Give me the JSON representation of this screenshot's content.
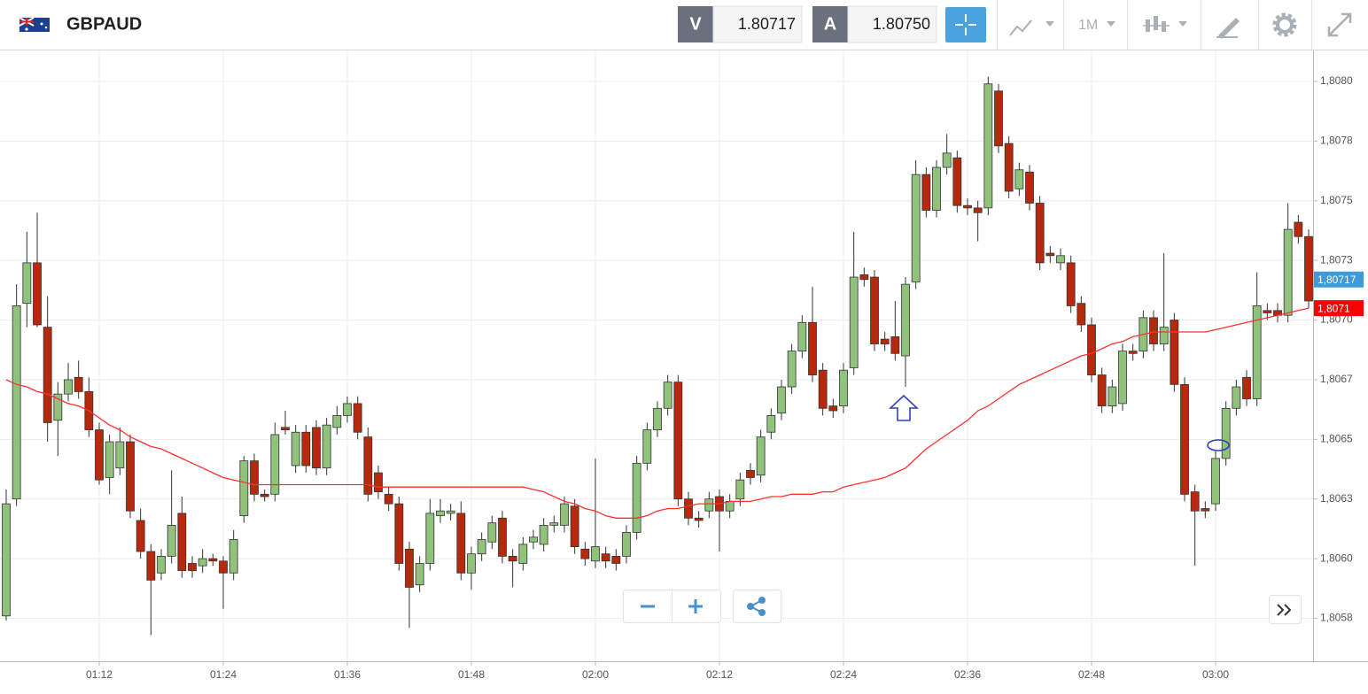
{
  "header": {
    "symbol": "GBPAUD",
    "bid_label": "V",
    "bid": "1.80717",
    "ask_label": "A",
    "ask": "1.80750",
    "timeframe": "1M"
  },
  "chart_data": {
    "type": "candlestick",
    "categories": [
      null,
      null,
      null,
      null,
      null,
      null,
      null,
      null,
      null,
      "01:12",
      null,
      null,
      null,
      null,
      null,
      null,
      null,
      null,
      null,
      null,
      null,
      "01:24",
      null,
      null,
      null,
      null,
      null,
      null,
      null,
      null,
      null,
      null,
      null,
      "01:36",
      null,
      null,
      null,
      null,
      null,
      null,
      null,
      null,
      null,
      null,
      null,
      "01:48",
      null,
      null,
      null,
      null,
      null,
      null,
      null,
      null,
      null,
      null,
      null,
      "02:00",
      null,
      null,
      null,
      null,
      null,
      null,
      null,
      null,
      null,
      null,
      null,
      "02:12",
      null,
      null,
      null,
      null,
      null,
      null,
      null,
      null,
      null,
      null,
      null,
      "02:24",
      null,
      null,
      null,
      null,
      null,
      null,
      null,
      null,
      null,
      null,
      null,
      "02:36",
      null,
      null,
      null,
      null,
      null,
      null,
      null,
      null,
      null,
      null,
      null,
      "02:48",
      null,
      null,
      null,
      null,
      null,
      null,
      null,
      null,
      null,
      null,
      null,
      "03:00",
      null,
      null,
      null,
      null,
      null,
      null,
      null,
      null,
      null
    ],
    "open": [
      1.80576,
      1.80625,
      1.80707,
      1.80724,
      1.80697,
      1.80658,
      1.80669,
      1.80676,
      1.8067,
      1.80654,
      1.80634,
      1.80638,
      1.80649,
      1.80616,
      1.80603,
      1.80594,
      1.80601,
      1.80619,
      1.80598,
      1.80597,
      1.806,
      1.80599,
      1.80594,
      1.80618,
      1.80641,
      1.80627,
      1.80627,
      1.80655,
      1.80639,
      1.80653,
      1.80655,
      1.80638,
      1.80655,
      1.8066,
      1.80665,
      1.80651,
      1.80636,
      1.80627,
      1.80623,
      1.80604,
      1.80589,
      1.80598,
      1.80618,
      1.80619,
      1.80619,
      1.80594,
      1.80602,
      1.80607,
      1.80617,
      1.80601,
      1.80598,
      1.80607,
      1.80606,
      1.80614,
      1.80614,
      1.80622,
      1.80604,
      1.80599,
      1.80602,
      1.80601,
      1.80601,
      1.80611,
      1.8064,
      1.80654,
      1.80663,
      1.80674,
      1.80625,
      1.80617,
      1.8062,
      1.80626,
      1.8062,
      1.80625,
      1.80637,
      1.80635,
      1.80653,
      1.80661,
      1.80672,
      1.80687,
      1.80699,
      1.80679,
      1.80664,
      1.80664,
      1.8068,
      1.80719,
      1.80718,
      1.80692,
      1.80693,
      1.80685,
      1.80716,
      1.80761,
      1.80746,
      1.80764,
      1.80768,
      1.80748,
      1.80747,
      1.80747,
      1.80796,
      1.80774,
      1.80755,
      1.80762,
      1.80749,
      1.80728,
      1.80724,
      1.80724,
      1.80707,
      1.80698,
      1.80677,
      1.80664,
      1.80665,
      1.80687,
      1.80687,
      1.80701,
      1.8069,
      1.807,
      1.80673,
      1.80628,
      1.80621,
      1.80623,
      1.80642,
      1.80663,
      1.80676,
      1.80667,
      1.80704,
      1.80704,
      1.80702,
      1.80741,
      1.80735
    ],
    "high": [
      1.80629,
      1.80715,
      1.80737,
      1.80745,
      1.8071,
      1.80674,
      1.80682,
      1.80683,
      1.80676,
      1.80657,
      1.80652,
      1.80655,
      1.80652,
      1.80621,
      1.80606,
      1.80604,
      1.80637,
      1.80626,
      1.80601,
      1.80604,
      1.80602,
      1.80601,
      1.80612,
      1.80643,
      1.80644,
      1.80629,
      1.80657,
      1.80662,
      1.80656,
      1.80656,
      1.80658,
      1.80659,
      1.80664,
      1.80668,
      1.80668,
      1.80655,
      1.80639,
      1.8063,
      1.80626,
      1.80607,
      1.80601,
      1.80625,
      1.80625,
      1.80623,
      1.80624,
      1.80605,
      1.80611,
      1.80618,
      1.8062,
      1.80604,
      1.80609,
      1.80612,
      1.80617,
      1.80618,
      1.80626,
      1.80625,
      1.80607,
      1.80642,
      1.80605,
      1.80604,
      1.80614,
      1.80643,
      1.80657,
      1.80666,
      1.80677,
      1.80677,
      1.80628,
      1.8062,
      1.80628,
      1.80629,
      1.80627,
      1.80636,
      1.8064,
      1.80654,
      1.80663,
      1.80675,
      1.8069,
      1.80702,
      1.80714,
      1.80682,
      1.80667,
      1.80682,
      1.80737,
      1.80722,
      1.80721,
      1.80695,
      1.80708,
      1.80718,
      1.80767,
      1.80764,
      1.80767,
      1.80778,
      1.80771,
      1.80751,
      1.8075,
      1.80802,
      1.80799,
      1.80777,
      1.80766,
      1.80765,
      1.80752,
      1.80731,
      1.8073,
      1.80727,
      1.8071,
      1.80701,
      1.8068,
      1.80675,
      1.8069,
      1.8069,
      1.80704,
      1.80704,
      1.80728,
      1.80703,
      1.80676,
      1.80631,
      1.80624,
      1.80645,
      1.80666,
      1.80675,
      1.80679,
      1.8072,
      1.80707,
      1.80707,
      1.80749,
      1.80744,
      1.80738
    ],
    "low": [
      1.80574,
      1.80622,
      1.80697,
      1.80697,
      1.80649,
      1.80643,
      1.80666,
      1.80667,
      1.80651,
      1.80631,
      1.80627,
      1.80635,
      1.80617,
      1.806,
      1.80568,
      1.80591,
      1.80598,
      1.80592,
      1.80592,
      1.80594,
      1.80597,
      1.80579,
      1.80591,
      1.80615,
      1.80624,
      1.80624,
      1.80624,
      1.80652,
      1.80636,
      1.80636,
      1.80635,
      1.80635,
      1.80652,
      1.80657,
      1.8065,
      1.80624,
      1.80625,
      1.8062,
      1.80595,
      1.80571,
      1.80586,
      1.80595,
      1.80615,
      1.80616,
      1.80591,
      1.80587,
      1.80599,
      1.80604,
      1.80598,
      1.80588,
      1.80595,
      1.80604,
      1.80603,
      1.80611,
      1.80611,
      1.80602,
      1.80597,
      1.80596,
      1.80596,
      1.80595,
      1.80598,
      1.80608,
      1.80637,
      1.80651,
      1.8066,
      1.80622,
      1.80614,
      1.80613,
      1.80617,
      1.80603,
      1.80617,
      1.80622,
      1.80631,
      1.80632,
      1.8065,
      1.80658,
      1.80669,
      1.80684,
      1.80674,
      1.8066,
      1.80659,
      1.80661,
      1.80677,
      1.80714,
      1.80687,
      1.80687,
      1.80683,
      1.80672,
      1.80713,
      1.80743,
      1.80743,
      1.80761,
      1.80745,
      1.80744,
      1.80733,
      1.80744,
      1.8077,
      1.80751,
      1.80752,
      1.80746,
      1.80721,
      1.80724,
      1.80721,
      1.80703,
      1.80695,
      1.80674,
      1.80661,
      1.80661,
      1.80662,
      1.80683,
      1.80684,
      1.80687,
      1.80687,
      1.8067,
      1.80624,
      1.80597,
      1.80617,
      1.8062,
      1.80639,
      1.8066,
      1.80664,
      1.80664,
      1.807,
      1.80699,
      1.80699,
      1.80732,
      1.80705
    ],
    "close": [
      1.80623,
      1.80706,
      1.80724,
      1.80698,
      1.80657,
      1.80669,
      1.80675,
      1.8067,
      1.80654,
      1.80633,
      1.80649,
      1.80649,
      1.8062,
      1.80603,
      1.80591,
      1.80601,
      1.80614,
      1.80595,
      1.80595,
      1.806,
      1.80599,
      1.80594,
      1.80608,
      1.80641,
      1.80627,
      1.80626,
      1.80652,
      1.80654,
      1.80653,
      1.80639,
      1.80638,
      1.80656,
      1.8066,
      1.80665,
      1.80653,
      1.80627,
      1.80628,
      1.80623,
      1.80598,
      1.80588,
      1.80598,
      1.80619,
      1.8062,
      1.8062,
      1.80594,
      1.80602,
      1.80608,
      1.80615,
      1.80601,
      1.80599,
      1.80606,
      1.80609,
      1.80614,
      1.80615,
      1.80623,
      1.80605,
      1.806,
      1.80605,
      1.80599,
      1.80598,
      1.80611,
      1.8064,
      1.80654,
      1.80663,
      1.80674,
      1.80625,
      1.80617,
      1.80616,
      1.80625,
      1.8062,
      1.80624,
      1.80633,
      1.80634,
      1.80651,
      1.8066,
      1.80672,
      1.80687,
      1.80699,
      1.80677,
      1.80663,
      1.80662,
      1.80679,
      1.80718,
      1.80717,
      1.8069,
      1.8069,
      1.80686,
      1.80715,
      1.80761,
      1.80746,
      1.80764,
      1.8077,
      1.80748,
      1.80747,
      1.80745,
      1.80799,
      1.80773,
      1.80754,
      1.80763,
      1.80749,
      1.80724,
      1.80727,
      1.80727,
      1.80706,
      1.80698,
      1.80677,
      1.80664,
      1.80672,
      1.80687,
      1.80686,
      1.80701,
      1.8069,
      1.80697,
      1.80673,
      1.80627,
      1.8062,
      1.8062,
      1.80642,
      1.80663,
      1.80672,
      1.80667,
      1.80706,
      1.80703,
      1.80702,
      1.80738,
      1.80735,
      1.80708
    ],
    "ma": [
      1.80675,
      1.80673,
      1.80672,
      1.8067,
      1.80669,
      1.80667,
      1.80665,
      1.80664,
      1.80662,
      1.80659,
      1.80656,
      1.80654,
      1.80651,
      1.80649,
      1.80647,
      1.80646,
      1.80644,
      1.80642,
      1.8064,
      1.80638,
      1.80636,
      1.80634,
      1.80633,
      1.80632,
      1.80631,
      1.80631,
      1.80631,
      1.80631,
      1.80631,
      1.80631,
      1.80631,
      1.80631,
      1.80631,
      1.80631,
      1.80631,
      1.80631,
      1.8063,
      1.8063,
      1.8063,
      1.8063,
      1.8063,
      1.8063,
      1.8063,
      1.8063,
      1.8063,
      1.8063,
      1.8063,
      1.8063,
      1.8063,
      1.8063,
      1.8063,
      1.80629,
      1.80628,
      1.80626,
      1.80624,
      1.80623,
      1.80621,
      1.8062,
      1.80618,
      1.80617,
      1.80617,
      1.80617,
      1.80618,
      1.8062,
      1.80621,
      1.80621,
      1.80622,
      1.80623,
      1.80623,
      1.80623,
      1.80624,
      1.80624,
      1.80624,
      1.80625,
      1.80626,
      1.80626,
      1.80627,
      1.80627,
      1.80627,
      1.80628,
      1.80628,
      1.8063,
      1.80631,
      1.80632,
      1.80633,
      1.80634,
      1.80636,
      1.80638,
      1.80642,
      1.80646,
      1.80649,
      1.80652,
      1.80655,
      1.80658,
      1.80662,
      1.80664,
      1.80667,
      1.8067,
      1.80673,
      1.80675,
      1.80677,
      1.80679,
      1.80681,
      1.80683,
      1.80685,
      1.80686,
      1.80688,
      1.8069,
      1.80691,
      1.80693,
      1.80694,
      1.80695,
      1.80695,
      1.80695,
      1.80695,
      1.80695,
      1.80695,
      1.80696,
      1.80697,
      1.80698,
      1.80699,
      1.807,
      1.80701,
      1.80702,
      1.80703,
      1.80704,
      1.80705
    ],
    "up_color": "#90c27c",
    "down_color": "#b52a0c",
    "ma_color": "#ff3030",
    "ylim": [
      1.80557,
      1.80813
    ],
    "yticks": [
      {
        "value": 1.808,
        "label": "1,8080"
      },
      {
        "value": 1.80775,
        "label": "1,8078"
      },
      {
        "value": 1.8075,
        "label": "1,8075"
      },
      {
        "value": 1.80725,
        "label": "1,8073"
      },
      {
        "value": 1.807,
        "label": "1,8070"
      },
      {
        "value": 1.80675,
        "label": "1,8067"
      },
      {
        "value": 1.8065,
        "label": "1,8065"
      },
      {
        "value": 1.80625,
        "label": "1,8063"
      },
      {
        "value": 1.806,
        "label": "1,8060"
      },
      {
        "value": 1.80575,
        "label": "1,8058"
      }
    ],
    "price_labels": [
      {
        "value": 1.80717,
        "label": "1,80717",
        "color": "#3d9bd9"
      },
      {
        "value": 1.80705,
        "label": "1,8071",
        "color": "#ff0000"
      }
    ],
    "grid": true
  }
}
